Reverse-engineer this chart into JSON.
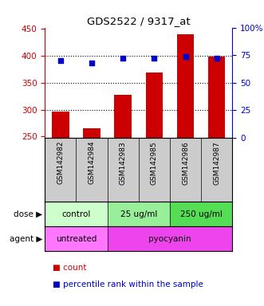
{
  "title": "GDS2522 / 9317_at",
  "samples": [
    "GSM142982",
    "GSM142984",
    "GSM142983",
    "GSM142985",
    "GSM142986",
    "GSM142987"
  ],
  "counts": [
    297,
    265,
    328,
    368,
    440,
    398
  ],
  "percentiles": [
    70,
    68,
    72,
    72,
    74,
    72
  ],
  "ylim_left": [
    248,
    452
  ],
  "ylim_right": [
    0,
    100
  ],
  "yticks_left": [
    250,
    300,
    350,
    400,
    450
  ],
  "ytick_labels_left": [
    "250",
    "300",
    "350",
    "400",
    "450"
  ],
  "yticks_right": [
    0,
    25,
    50,
    75,
    100
  ],
  "ytick_labels_right": [
    "0",
    "25",
    "50",
    "75",
    "100%"
  ],
  "bar_color": "#CC0000",
  "dot_color": "#0000CC",
  "gridline_values": [
    300,
    350,
    400
  ],
  "dose_groups": [
    {
      "label": "control",
      "span": [
        0,
        2
      ],
      "color": "#CCFFCC"
    },
    {
      "label": "25 ug/ml",
      "span": [
        2,
        4
      ],
      "color": "#99EE99"
    },
    {
      "label": "250 ug/ml",
      "span": [
        4,
        6
      ],
      "color": "#55DD55"
    }
  ],
  "agent_groups": [
    {
      "label": "untreated",
      "span": [
        0,
        2
      ],
      "color": "#FF77FF"
    },
    {
      "label": "pyocyanin",
      "span": [
        2,
        6
      ],
      "color": "#EE44EE"
    }
  ],
  "dose_label": "dose",
  "agent_label": "agent",
  "legend_count_color": "#CC0000",
  "legend_pct_color": "#0000CC",
  "legend_count_label": "count",
  "legend_pct_label": "percentile rank within the sample",
  "bg_color": "#FFFFFF",
  "sample_bg": "#CCCCCC",
  "sample_text_color": "#000000"
}
